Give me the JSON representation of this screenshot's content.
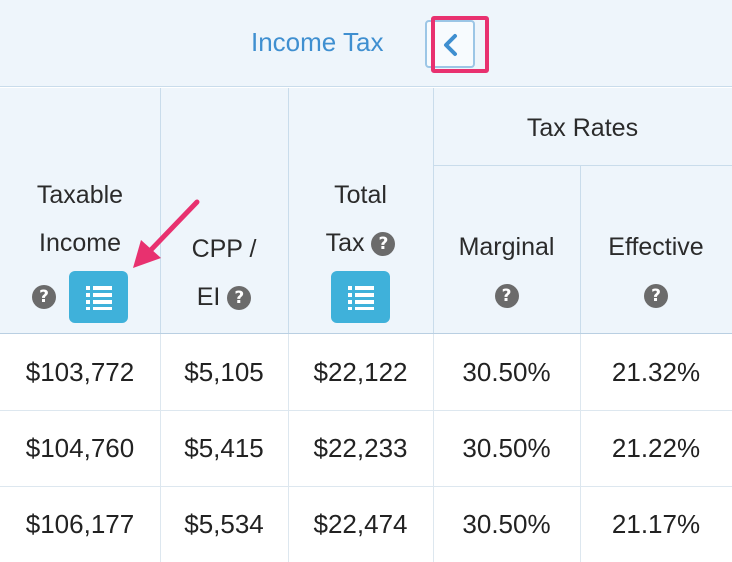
{
  "title": "Income Tax",
  "collapse_icon": "chevron-left-icon",
  "columns": {
    "taxable_income": [
      "Taxable",
      "Income"
    ],
    "cpp_ei": [
      "CPP /",
      "EI"
    ],
    "total_tax": [
      "Total",
      "Tax"
    ],
    "tax_rates": "Tax Rates",
    "marginal": "Marginal",
    "effective": "Effective"
  },
  "help_glyph": "?",
  "rows": [
    [
      "$103,772",
      "$5,105",
      "$22,122",
      "30.50%",
      "21.32%"
    ],
    [
      "$104,760",
      "$5,415",
      "$22,233",
      "30.50%",
      "21.22%"
    ],
    [
      "$106,177",
      "$5,534",
      "$22,474",
      "30.50%",
      "21.17%"
    ]
  ],
  "colors": {
    "title_blue": "#3f8fd0",
    "header_bg": "#eef5fb",
    "list_button": "#3fb1da",
    "highlight_pink": "#e8316f"
  }
}
